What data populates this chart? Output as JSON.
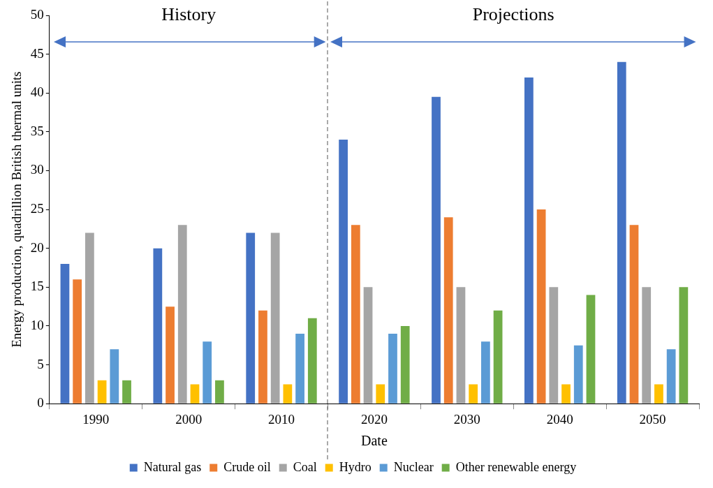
{
  "chart_data": {
    "type": "bar",
    "xlabel": "Date",
    "ylabel": "Energy production, quadrillion British thermal units",
    "categories": [
      "1990",
      "2000",
      "2010",
      "2020",
      "2030",
      "2040",
      "2050"
    ],
    "series": [
      {
        "name": "Natural gas",
        "color": "#4472c4",
        "values": [
          18,
          20,
          22,
          34,
          39.5,
          42,
          44
        ]
      },
      {
        "name": "Crude oil",
        "color": "#ed7d31",
        "values": [
          16,
          12.5,
          12,
          23,
          24,
          25,
          23
        ]
      },
      {
        "name": "Coal",
        "color": "#a5a5a5",
        "values": [
          22,
          23,
          22,
          15,
          15,
          15,
          15
        ]
      },
      {
        "name": "Hydro",
        "color": "#ffc000",
        "values": [
          3,
          2.5,
          2.5,
          2.5,
          2.5,
          2.5,
          2.5
        ]
      },
      {
        "name": "Nuclear",
        "color": "#5b9bd5",
        "values": [
          7,
          8,
          9,
          9,
          8,
          7.5,
          7
        ]
      },
      {
        "name": "Other renewable energy",
        "color": "#70ad47",
        "values": [
          3,
          3,
          11,
          10,
          12,
          14,
          15
        ]
      }
    ],
    "ylim": [
      0,
      50
    ],
    "yticks": [
      0,
      5,
      10,
      15,
      20,
      25,
      30,
      35,
      40,
      45,
      50
    ],
    "grid": false,
    "legend": "bottom",
    "annotations": [
      "History",
      "Projections"
    ]
  }
}
